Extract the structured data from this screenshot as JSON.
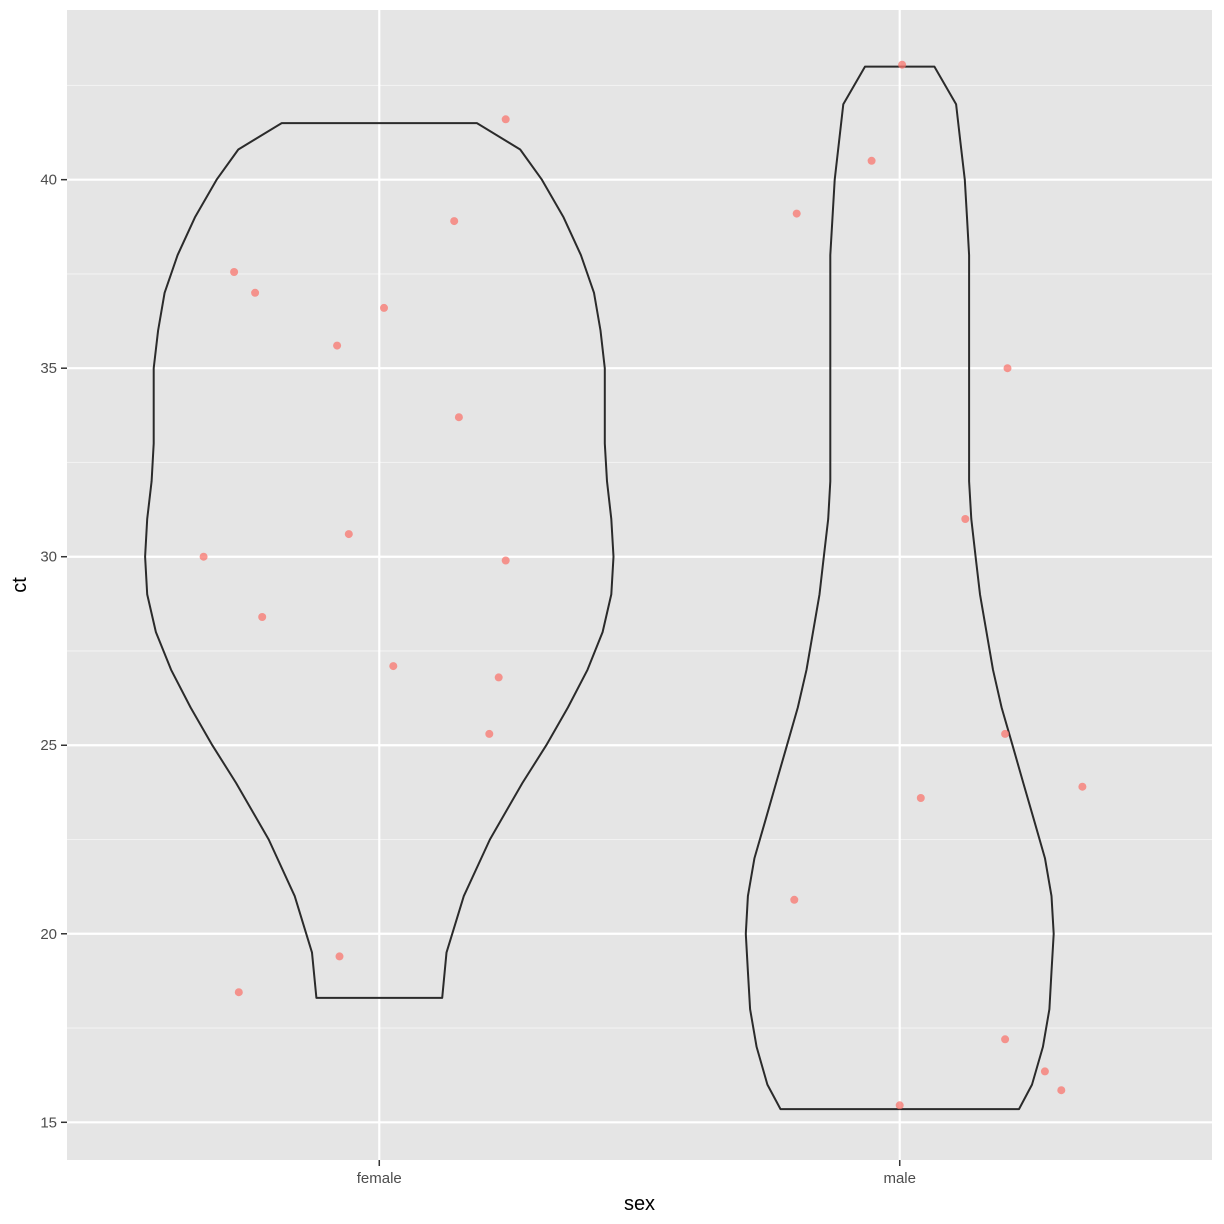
{
  "chart_data": {
    "type": "violin",
    "xlabel": "sex",
    "ylabel": "ct",
    "categories": [
      "female",
      "male"
    ],
    "ylim": [
      14,
      44.5
    ],
    "yticks": [
      15,
      20,
      25,
      30,
      35,
      40
    ],
    "grid": true,
    "point_color": "#F8766D",
    "violins": [
      {
        "category": "female",
        "min": 18.3,
        "max": 41.5,
        "profile": [
          {
            "y": 18.3,
            "hw": 0.29
          },
          {
            "y": 19.5,
            "hw": 0.31
          },
          {
            "y": 21.0,
            "hw": 0.39
          },
          {
            "y": 22.5,
            "hw": 0.51
          },
          {
            "y": 24.0,
            "hw": 0.66
          },
          {
            "y": 25.0,
            "hw": 0.77
          },
          {
            "y": 26.0,
            "hw": 0.87
          },
          {
            "y": 27.0,
            "hw": 0.96
          },
          {
            "y": 28.0,
            "hw": 1.03
          },
          {
            "y": 29.0,
            "hw": 1.07
          },
          {
            "y": 30.0,
            "hw": 1.08
          },
          {
            "y": 31.0,
            "hw": 1.07
          },
          {
            "y": 32.0,
            "hw": 1.05
          },
          {
            "y": 33.0,
            "hw": 1.04
          },
          {
            "y": 34.0,
            "hw": 1.04
          },
          {
            "y": 35.0,
            "hw": 1.04
          },
          {
            "y": 36.0,
            "hw": 1.02
          },
          {
            "y": 37.0,
            "hw": 0.99
          },
          {
            "y": 38.0,
            "hw": 0.93
          },
          {
            "y": 39.0,
            "hw": 0.85
          },
          {
            "y": 40.0,
            "hw": 0.75
          },
          {
            "y": 40.8,
            "hw": 0.65
          },
          {
            "y": 41.5,
            "hw": 0.45
          }
        ]
      },
      {
        "category": "male",
        "min": 15.35,
        "max": 43.0,
        "profile": [
          {
            "y": 15.35,
            "hw": 0.55
          },
          {
            "y": 16.0,
            "hw": 0.61
          },
          {
            "y": 17.0,
            "hw": 0.66
          },
          {
            "y": 18.0,
            "hw": 0.69
          },
          {
            "y": 19.0,
            "hw": 0.7
          },
          {
            "y": 20.0,
            "hw": 0.71
          },
          {
            "y": 21.0,
            "hw": 0.7
          },
          {
            "y": 22.0,
            "hw": 0.67
          },
          {
            "y": 23.0,
            "hw": 0.62
          },
          {
            "y": 24.0,
            "hw": 0.57
          },
          {
            "y": 25.0,
            "hw": 0.52
          },
          {
            "y": 26.0,
            "hw": 0.47
          },
          {
            "y": 27.0,
            "hw": 0.43
          },
          {
            "y": 28.0,
            "hw": 0.4
          },
          {
            "y": 29.0,
            "hw": 0.37
          },
          {
            "y": 30.0,
            "hw": 0.35
          },
          {
            "y": 31.0,
            "hw": 0.33
          },
          {
            "y": 32.0,
            "hw": 0.32
          },
          {
            "y": 33.0,
            "hw": 0.32
          },
          {
            "y": 34.0,
            "hw": 0.32
          },
          {
            "y": 35.0,
            "hw": 0.32
          },
          {
            "y": 36.0,
            "hw": 0.32
          },
          {
            "y": 37.0,
            "hw": 0.32
          },
          {
            "y": 38.0,
            "hw": 0.32
          },
          {
            "y": 39.0,
            "hw": 0.31
          },
          {
            "y": 40.0,
            "hw": 0.3
          },
          {
            "y": 41.0,
            "hw": 0.28
          },
          {
            "y": 42.0,
            "hw": 0.26
          },
          {
            "y": 43.0,
            "hw": 0.16
          }
        ]
      }
    ],
    "points": [
      {
        "category": "female",
        "y": 41.6,
        "jitter": 0.54
      },
      {
        "category": "female",
        "y": 38.9,
        "jitter": 0.32
      },
      {
        "category": "female",
        "y": 37.55,
        "jitter": -0.62
      },
      {
        "category": "female",
        "y": 37.0,
        "jitter": -0.53
      },
      {
        "category": "female",
        "y": 36.6,
        "jitter": 0.02
      },
      {
        "category": "female",
        "y": 35.6,
        "jitter": -0.18
      },
      {
        "category": "female",
        "y": 33.7,
        "jitter": 0.34
      },
      {
        "category": "female",
        "y": 30.6,
        "jitter": -0.13
      },
      {
        "category": "female",
        "y": 30.0,
        "jitter": -0.75
      },
      {
        "category": "female",
        "y": 29.9,
        "jitter": 0.54
      },
      {
        "category": "female",
        "y": 28.4,
        "jitter": -0.5
      },
      {
        "category": "female",
        "y": 27.1,
        "jitter": 0.06
      },
      {
        "category": "female",
        "y": 26.8,
        "jitter": 0.51
      },
      {
        "category": "female",
        "y": 25.3,
        "jitter": 0.47
      },
      {
        "category": "female",
        "y": 19.4,
        "jitter": -0.17
      },
      {
        "category": "female",
        "y": 18.45,
        "jitter": -0.6
      },
      {
        "category": "male",
        "y": 43.05,
        "jitter": 0.01
      },
      {
        "category": "male",
        "y": 40.5,
        "jitter": -0.12
      },
      {
        "category": "male",
        "y": 39.1,
        "jitter": -0.44
      },
      {
        "category": "male",
        "y": 35.0,
        "jitter": 0.46
      },
      {
        "category": "male",
        "y": 31.0,
        "jitter": 0.28
      },
      {
        "category": "male",
        "y": 25.3,
        "jitter": 0.45
      },
      {
        "category": "male",
        "y": 23.9,
        "jitter": 0.78
      },
      {
        "category": "male",
        "y": 23.6,
        "jitter": 0.09
      },
      {
        "category": "male",
        "y": 20.9,
        "jitter": -0.45
      },
      {
        "category": "male",
        "y": 17.2,
        "jitter": 0.45
      },
      {
        "category": "male",
        "y": 16.35,
        "jitter": 0.62
      },
      {
        "category": "male",
        "y": 15.85,
        "jitter": 0.69
      },
      {
        "category": "male",
        "y": 15.45,
        "jitter": 0.0
      }
    ]
  }
}
